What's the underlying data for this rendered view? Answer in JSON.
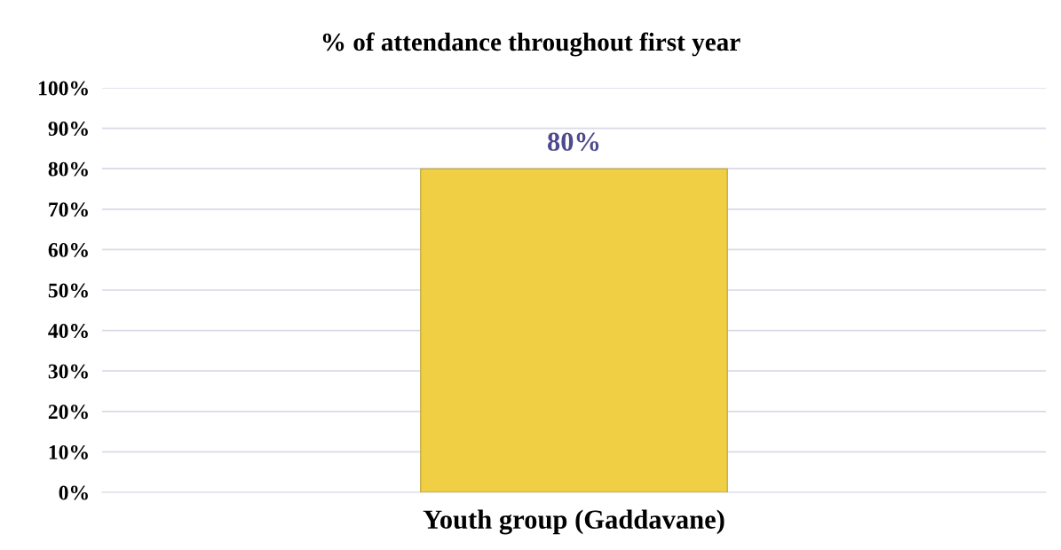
{
  "chart_data": {
    "type": "bar",
    "title": "% of attendance throughout first year",
    "categories": [
      "Youth group (Gaddavane)"
    ],
    "values": [
      80
    ],
    "color": "#f0cf45",
    "value_labels": [
      "80%"
    ],
    "ylim": [
      0,
      100
    ],
    "yticks": [
      {
        "value": 0,
        "label": "0%"
      },
      {
        "value": 10,
        "label": "10%"
      },
      {
        "value": 20,
        "label": "20%"
      },
      {
        "value": 30,
        "label": "30%"
      },
      {
        "value": 40,
        "label": "40%"
      },
      {
        "value": 50,
        "label": "50%"
      },
      {
        "value": 60,
        "label": "60%"
      },
      {
        "value": 70,
        "label": "70%"
      },
      {
        "value": 80,
        "label": "80%"
      },
      {
        "value": 90,
        "label": "90%"
      },
      {
        "value": 100,
        "label": "100%"
      }
    ],
    "grid": "y",
    "legend": false
  }
}
